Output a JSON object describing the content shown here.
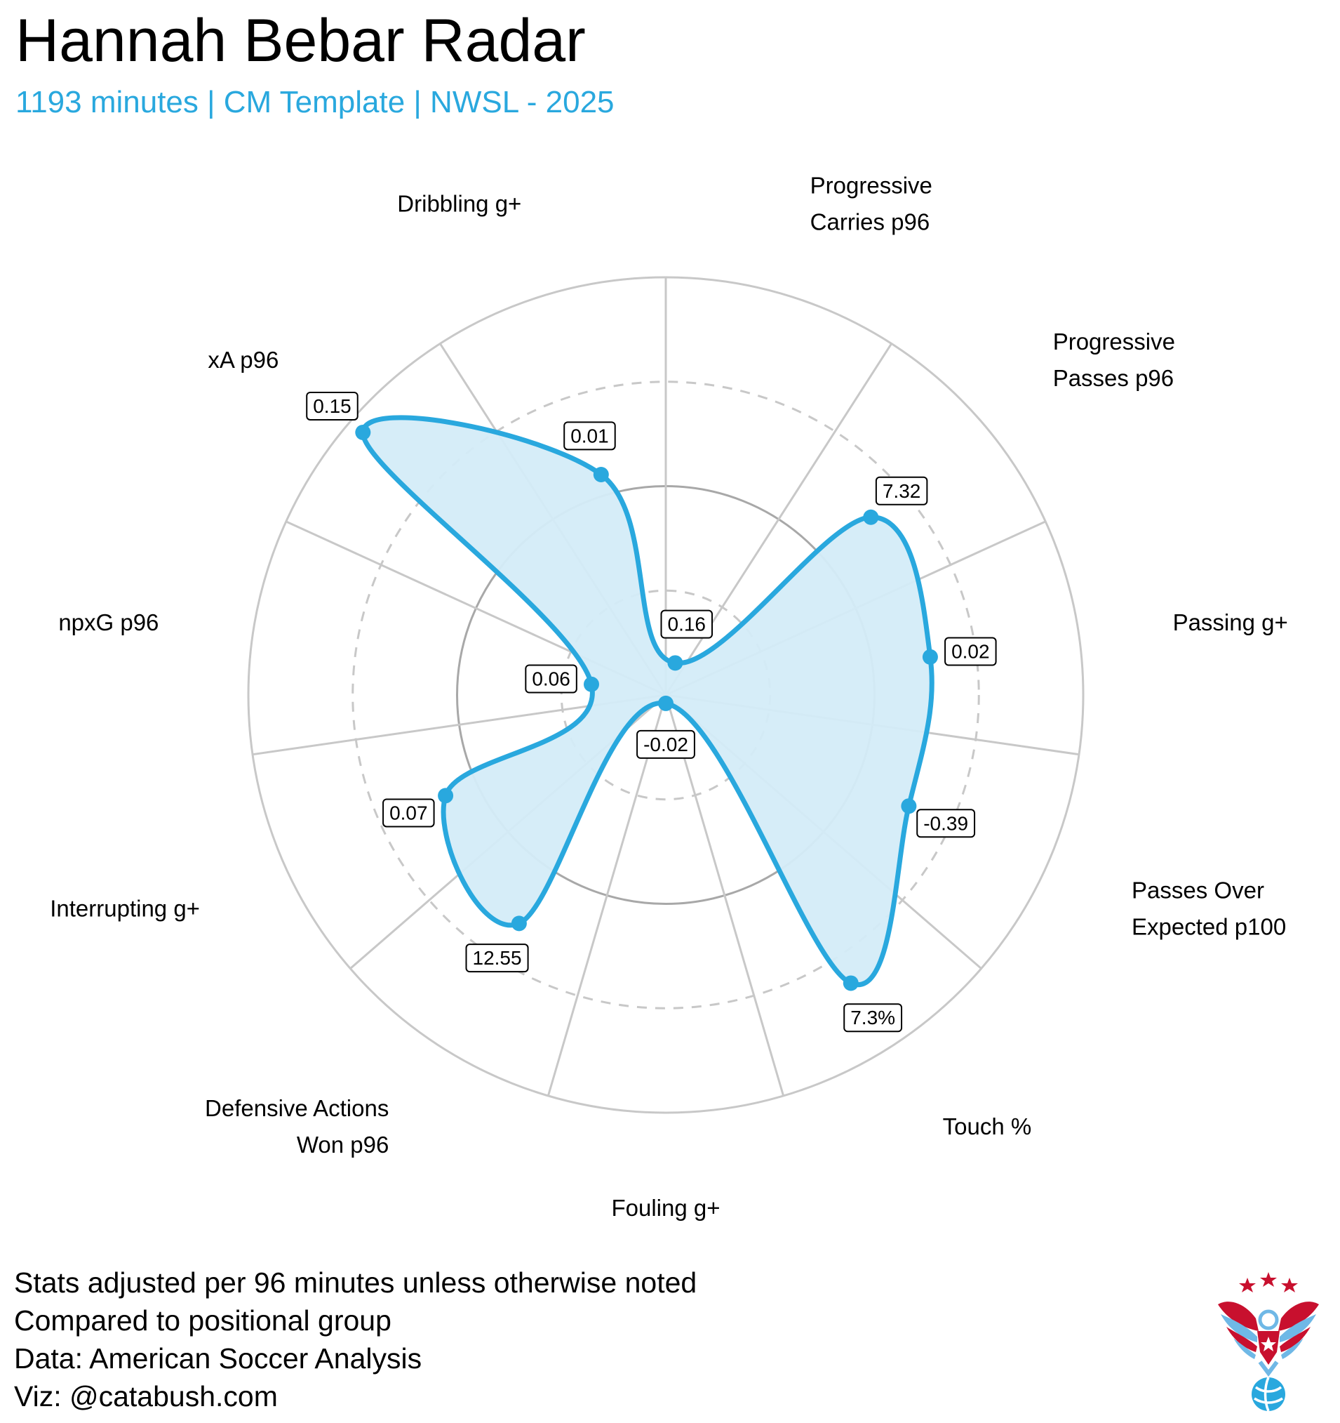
{
  "header": {
    "title": "Hannah Bebar Radar",
    "subtitle": "1193 minutes | CM Template | NWSL - 2025"
  },
  "colors": {
    "accent": "#29a8de",
    "fill": "#d4ecf8",
    "grid": "#c8c8c8",
    "ring": "#a8a8a8"
  },
  "chart_data": {
    "type": "radar",
    "scale": "percentile",
    "rlim": [
      0,
      100
    ],
    "grid": true,
    "categories": [
      "Progressive Carries p96",
      "Progressive Passes p96",
      "Passing g+",
      "Passes Over Expected p100",
      "Touch %",
      "Fouling g+",
      "Defensive Actions Won p96",
      "Interrupting g+",
      "npxG p96",
      "xA p96",
      "Dribbling g+"
    ],
    "category_lines": [
      [
        "Progressive",
        "Carries p96"
      ],
      [
        "Progressive",
        "Passes p96"
      ],
      [
        "Passing g+"
      ],
      [
        "Passes Over",
        "Expected p100"
      ],
      [
        "Touch %"
      ],
      [
        "Fouling g+"
      ],
      [
        "Defensive Actions",
        "Won p96"
      ],
      [
        "Interrupting g+"
      ],
      [
        "npxG p96"
      ],
      [
        "xA p96"
      ],
      [
        "Dribbling g+"
      ]
    ],
    "value_labels": [
      "0.16",
      "7.32",
      "0.02",
      "-0.39",
      "7.3%",
      "-0.02",
      "12.55",
      "0.07",
      "0.06",
      "0.15",
      "0.01"
    ],
    "percentiles": [
      8,
      65,
      64,
      64,
      82,
      2,
      65,
      58,
      18,
      96,
      55
    ]
  },
  "notes": [
    "Stats adjusted per 96 minutes unless otherwise noted",
    "Compared to positional group",
    "Data: American Soccer Analysis",
    "Viz: @catabush.com"
  ]
}
